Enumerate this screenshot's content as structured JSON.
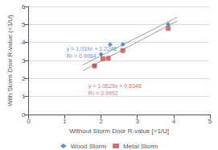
{
  "chart_data": {
    "type": "scatter",
    "xlabel": "Without Storm Door R-value [=1/U]",
    "ylabel": "With Storm Door R-value (=1/U)",
    "xlim": [
      0,
      5
    ],
    "ylim": [
      0,
      6
    ],
    "xticks": [
      0,
      1,
      2,
      3,
      4,
      5
    ],
    "yticks": [
      0,
      1,
      2,
      3,
      4,
      5,
      6
    ],
    "grid": "y",
    "legend": "bottom",
    "series": [
      {
        "type": "line",
        "color": "#9e9e9e",
        "x": [
          1.5,
          4.1
        ],
        "values": [
          2.7531,
          5.4025
        ]
      },
      {
        "type": "line",
        "color": "#9e9e9e",
        "x": [
          1.5,
          4.1
        ],
        "values": [
          2.42915,
          5.19269
        ]
      },
      {
        "name": "Wood Storm",
        "type": "scatter",
        "color": "#4472C4",
        "marker": "diamond",
        "x": [
          1.82,
          2.0,
          2.25,
          2.6,
          3.85
        ],
        "values": [
          2.72,
          3.35,
          3.88,
          3.9,
          5.0
        ]
      },
      {
        "name": "Metal Storm",
        "type": "scatter",
        "color": "#C0504D",
        "marker": "square",
        "x": [
          1.82,
          2.05,
          2.2,
          2.6,
          3.85
        ],
        "values": [
          2.7,
          3.1,
          3.12,
          3.55,
          4.78
        ]
      }
    ],
    "annotations": [
      {
        "text": "y = 1.019x + 1.2246\nR² = 0.9984",
        "x": 1.05,
        "y": 3.85,
        "color": "#4472C4"
      },
      {
        "text": "y = 1.0629x + 0.8348\nR² = 0.9992",
        "x": 1.65,
        "y": 1.78,
        "color": "#C0504D"
      }
    ]
  }
}
